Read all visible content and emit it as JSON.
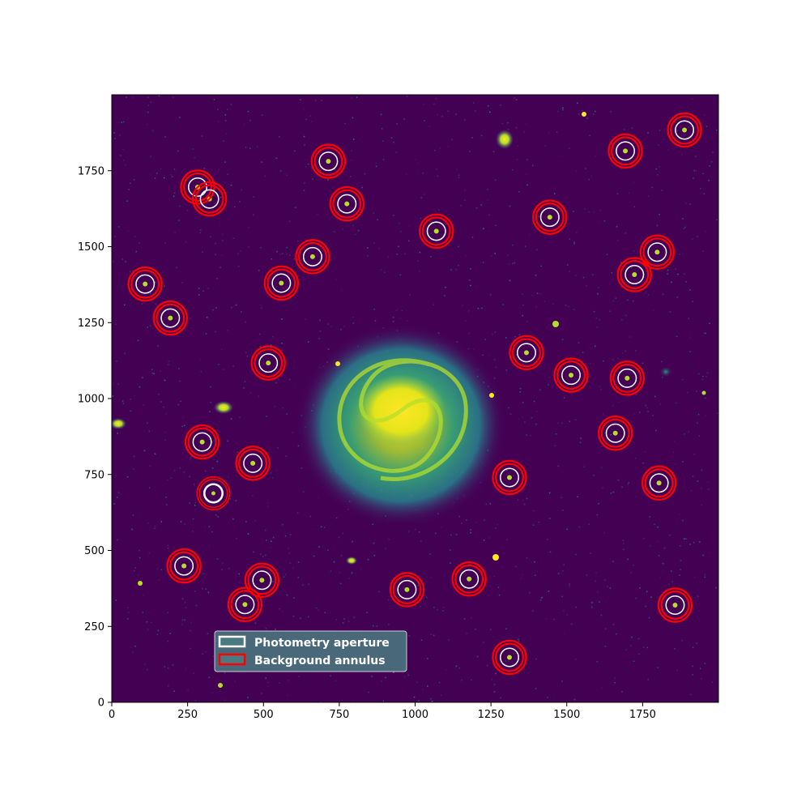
{
  "chart_data": {
    "type": "scatter",
    "image": "spiral galaxy field (viridis colormap)",
    "xlim": [
      0,
      2000
    ],
    "ylim": [
      0,
      2000
    ],
    "xticks": [
      0,
      250,
      500,
      750,
      1000,
      1250,
      1500,
      1750
    ],
    "yticks": [
      0,
      250,
      500,
      750,
      1000,
      1250,
      1500,
      1750
    ],
    "grid": false,
    "legend_position": "lower-left",
    "legend": [
      {
        "label": "Photometry aperture",
        "edge_color": "#ffffff",
        "face_color": "#4a7a80"
      },
      {
        "label": "Background annulus",
        "edge_color": "#ff0000",
        "face_color": "#4a7a80"
      }
    ],
    "galaxy_center": [
      955,
      960
    ],
    "target": [
      335,
      688
    ],
    "apertures": [
      [
        1888,
        1884
      ],
      [
        1693,
        1815
      ],
      [
        714,
        1781
      ],
      [
        283,
        1696
      ],
      [
        322,
        1657
      ],
      [
        775,
        1641
      ],
      [
        1444,
        1597
      ],
      [
        1070,
        1551
      ],
      [
        1798,
        1482
      ],
      [
        662,
        1467
      ],
      [
        1723,
        1408
      ],
      [
        559,
        1380
      ],
      [
        110,
        1377
      ],
      [
        193,
        1265
      ],
      [
        1367,
        1151
      ],
      [
        516,
        1117
      ],
      [
        1514,
        1077
      ],
      [
        1699,
        1067
      ],
      [
        1660,
        886
      ],
      [
        298,
        857
      ],
      [
        465,
        787
      ],
      [
        1311,
        740
      ],
      [
        1804,
        722
      ],
      [
        238,
        449
      ],
      [
        1178,
        406
      ],
      [
        495,
        402
      ],
      [
        973,
        371
      ],
      [
        439,
        322
      ],
      [
        1857,
        320
      ],
      [
        1311,
        148
      ]
    ]
  },
  "colors": {
    "aperture": "#ffffff",
    "annulus": "#ff0000",
    "background": "#440154",
    "legend_box": "#4a7a80"
  }
}
